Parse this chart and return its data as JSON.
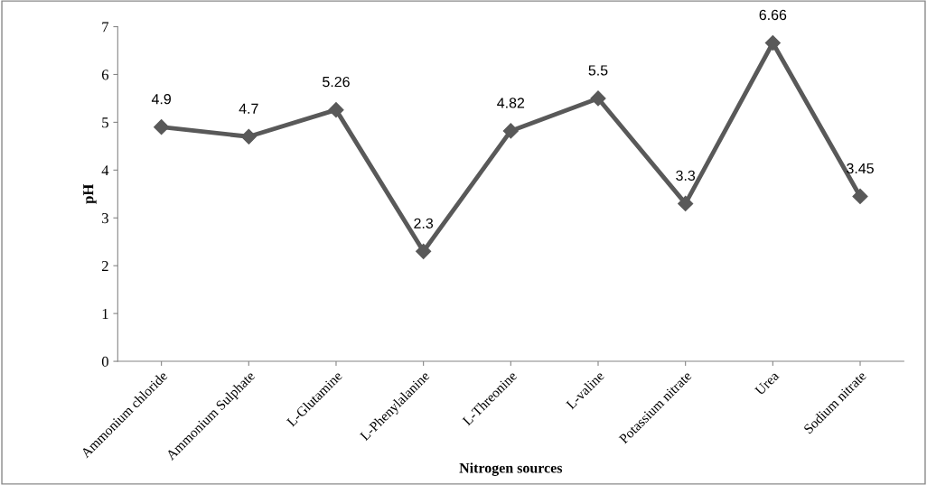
{
  "chart_data": {
    "type": "line",
    "xlabel": "Nitrogen sources",
    "ylabel": "pH",
    "categories": [
      "Ammonium chloride",
      "Ammonium Sulphate",
      "L-Glutamine",
      "L-Phenylalanine",
      "L-Threonine",
      "L-valine",
      "Potassium nitrate",
      "Urea",
      "Sodium nitrate"
    ],
    "values": [
      4.9,
      4.7,
      5.26,
      2.3,
      4.82,
      5.5,
      3.3,
      6.66,
      3.45
    ],
    "color": "#595959",
    "marker": "diamond",
    "line_style": "solid",
    "data_labels": true,
    "grid": false,
    "legend": false,
    "ylim": [
      0,
      7
    ],
    "yticks": [
      0,
      1,
      2,
      3,
      4,
      5,
      6,
      7
    ]
  }
}
